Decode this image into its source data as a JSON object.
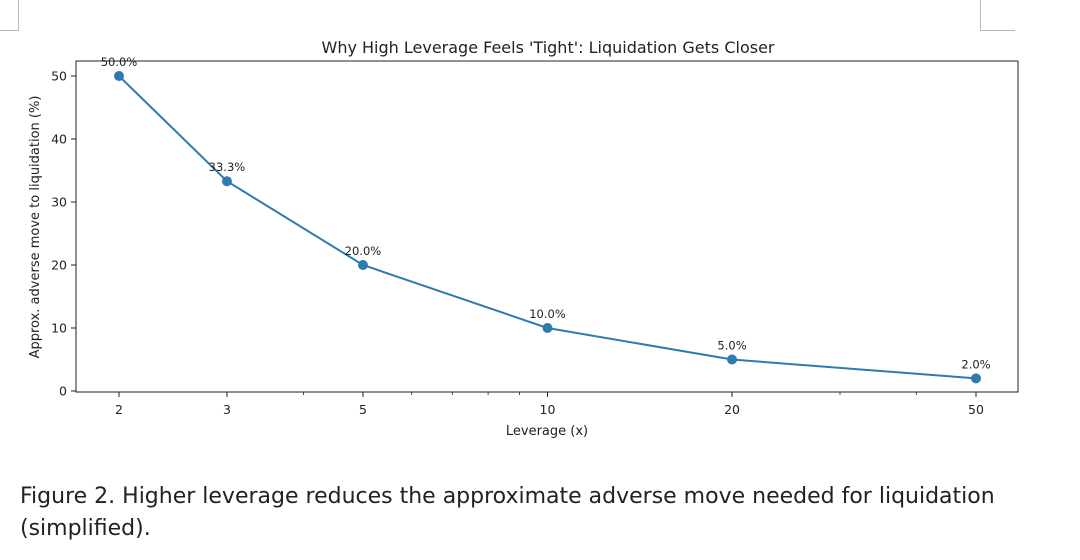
{
  "chart_data": {
    "type": "line",
    "title": "Why High Leverage Feels 'Tight': Liquidation Gets Closer",
    "xlabel": "Leverage (x)",
    "ylabel": "Approx. adverse move to liquidation (%)",
    "xscale": "log",
    "x": [
      2,
      3,
      5,
      10,
      20,
      50
    ],
    "x_tick_labels": [
      "2",
      "3",
      "5",
      "10",
      "20",
      "50"
    ],
    "y": [
      50.0,
      33.3,
      20.0,
      10.0,
      5.0,
      2.0
    ],
    "data_labels": [
      "50.0%",
      "33.3%",
      "20.0%",
      "10.0%",
      "5.0%",
      "2.0%"
    ],
    "y_ticks": [
      0,
      10,
      20,
      30,
      40,
      50
    ],
    "y_tick_labels": [
      "0",
      "10",
      "20",
      "30",
      "40",
      "50"
    ],
    "ylim": [
      0,
      50
    ],
    "grid": false,
    "legend": false,
    "color": "#2e7bb0"
  },
  "caption": "Figure 2. Higher leverage reduces the approximate adverse move needed for liquidation (simplified)."
}
